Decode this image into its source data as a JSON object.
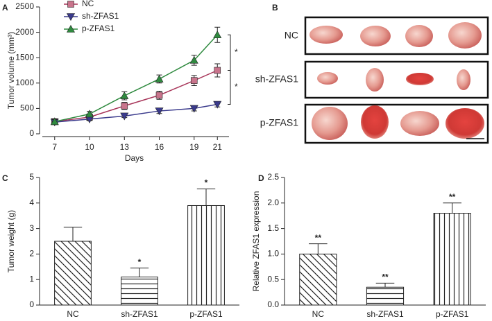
{
  "chart_data": [
    {
      "type": "line",
      "panel_label": "A",
      "x_label": "Days",
      "y_label": "Tumor volume (mm³)",
      "x": [
        7,
        10,
        13,
        16,
        19,
        21
      ],
      "xlim": [
        5.7,
        22
      ],
      "xticks": [
        7,
        10,
        13,
        16,
        19,
        21
      ],
      "ylim": [
        0,
        2500
      ],
      "yticks": [
        0,
        500,
        1000,
        1500,
        2000,
        2500
      ],
      "series": [
        {
          "name": "NC",
          "color": "#a8365a",
          "marker_color": "#c9748c",
          "marker": "square",
          "values": [
            240,
            330,
            550,
            760,
            1050,
            1250
          ],
          "errors": [
            50,
            50,
            70,
            80,
            100,
            130
          ]
        },
        {
          "name": "sh-ZFAS1",
          "color": "#3a3a8c",
          "marker_color": "#3a3a8c",
          "marker": "triangle-down",
          "values": [
            230,
            290,
            350,
            450,
            500,
            580
          ],
          "errors": [
            30,
            30,
            30,
            50,
            50,
            50
          ]
        },
        {
          "name": "p-ZFAS1",
          "color": "#2f8a3f",
          "marker_color": "#2f8a3f",
          "marker": "triangle",
          "values": [
            240,
            390,
            750,
            1080,
            1450,
            1950
          ],
          "errors": [
            40,
            50,
            80,
            80,
            100,
            150
          ]
        }
      ],
      "annotations": [
        "*",
        "*"
      ]
    },
    {
      "type": "bar",
      "panel_label": "C",
      "y_label": "Tumor weight (g)",
      "categories": [
        "NC",
        "sh-ZFAS1",
        "p-ZFAS1"
      ],
      "values": [
        2.5,
        1.1,
        3.9
      ],
      "errors": [
        0.55,
        0.35,
        0.65
      ],
      "value_annotations": [
        null,
        "*",
        "*"
      ],
      "ylim": [
        0,
        5
      ],
      "yticks": [
        0,
        1,
        2,
        3,
        4,
        5
      ]
    },
    {
      "type": "bar",
      "panel_label": "D",
      "y_label": "Relative ZFAS1 expression",
      "categories": [
        "NC",
        "sh-ZFAS1",
        "p-ZFAS1"
      ],
      "values": [
        1.0,
        0.35,
        1.8
      ],
      "errors": [
        0.2,
        0.08,
        0.2
      ],
      "value_annotations": [
        "**",
        "**",
        "**"
      ],
      "ylim": [
        0,
        2.5
      ],
      "yticks": [
        {
          "value": 0,
          "label": "0.0"
        },
        0.5,
        {
          "value": 1,
          "label": "1.0"
        },
        1.5,
        {
          "value": 2,
          "label": "2.0"
        },
        2.5
      ]
    }
  ],
  "panel_b": {
    "label": "B",
    "rows": [
      "NC",
      "sh-ZFAS1",
      "p-ZFAS1"
    ]
  }
}
